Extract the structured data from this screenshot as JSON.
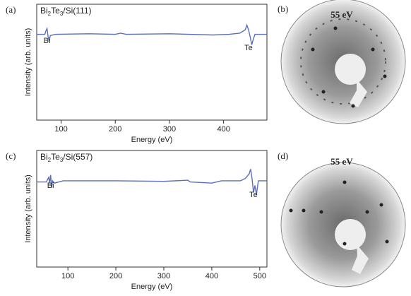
{
  "chart_data": [
    {
      "type": "line",
      "panel": "(a)",
      "sample": [
        "Bi",
        "2",
        "Te",
        "3",
        "/Si(111)"
      ],
      "ylabel": "Intensity (arb. units)",
      "xlabel": "Energy (eV)",
      "annotations": [
        "Bi",
        "Te"
      ],
      "xlim": [
        55,
        480
      ],
      "ylim": [
        0,
        100
      ],
      "xticks": [
        100,
        200,
        300,
        400
      ],
      "color": "#5a6fb5",
      "x": [
        55,
        70,
        72,
        74,
        76,
        78,
        80,
        90,
        150,
        200,
        210,
        220,
        300,
        380,
        410,
        430,
        440,
        443,
        446,
        449,
        452,
        455,
        458,
        480
      ],
      "values": [
        74,
        74,
        77,
        79,
        72,
        68,
        73,
        74,
        74.5,
        74,
        75,
        74,
        74.5,
        73.5,
        74,
        75,
        78,
        82,
        78,
        72,
        65,
        70,
        74,
        74
      ]
    },
    {
      "type": "line",
      "panel": "(c)",
      "sample": [
        "Bi",
        "2",
        "Te",
        "3",
        "/Si(557)"
      ],
      "ylabel": "Intensity (arb. units)",
      "xlabel": "Energy (eV)",
      "annotations": [
        "Bi",
        "Te"
      ],
      "xlim": [
        35,
        515
      ],
      "ylim": [
        0,
        100
      ],
      "xticks": [
        100,
        200,
        300,
        400,
        500
      ],
      "color": "#5a6fb5",
      "x": [
        35,
        55,
        60,
        62,
        64,
        66,
        68,
        72,
        90,
        200,
        300,
        350,
        355,
        400,
        420,
        460,
        470,
        478,
        481,
        484,
        487,
        490,
        493,
        497,
        515
      ],
      "values": [
        73,
        73,
        77,
        72,
        79,
        68,
        74,
        72,
        74,
        74,
        73.5,
        74.5,
        73,
        72,
        74,
        74,
        76,
        80,
        84,
        76,
        64,
        70,
        62,
        74,
        74
      ]
    }
  ],
  "images": [
    {
      "panel": "(b)",
      "energy": "55 eV"
    },
    {
      "panel": "(d)",
      "energy": "55 eV"
    }
  ]
}
